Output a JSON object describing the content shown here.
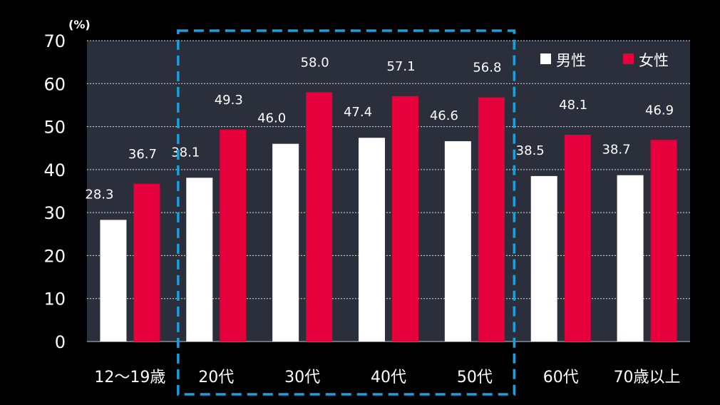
{
  "chart_data": {
    "type": "bar",
    "unit_label": "(%)",
    "categories": [
      "12〜19歳",
      "20代",
      "30代",
      "40代",
      "50代",
      "60代",
      "70歳以上"
    ],
    "series": [
      {
        "name": "男性",
        "color": "#ffffff",
        "values": [
          28.3,
          38.1,
          46.0,
          47.4,
          46.6,
          38.5,
          38.7
        ]
      },
      {
        "name": "女性",
        "color": "#e6003c",
        "values": [
          36.7,
          49.3,
          58.0,
          57.1,
          56.8,
          48.1,
          46.9
        ]
      }
    ],
    "y_ticks": [
      0,
      10,
      20,
      30,
      40,
      50,
      60,
      70
    ],
    "ylim": [
      0,
      70
    ],
    "grid": true,
    "legend_position": "top-right",
    "highlight": {
      "from_category": "20代",
      "to_category": "50代",
      "color": "#1aa0dc"
    },
    "colors": {
      "background": "#000000",
      "plot_background": "#2b2e3b",
      "grid": "#ffffff"
    }
  }
}
